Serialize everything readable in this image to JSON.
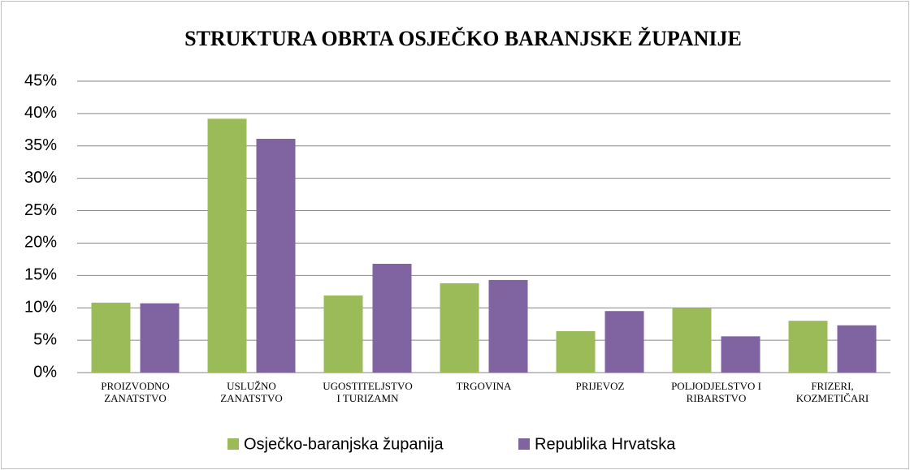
{
  "chart_data": {
    "type": "bar",
    "title": "STRUKTURA OBRTA OSJEČKO BARANJSKE ŽUPANIJE",
    "categories": [
      "PROIZVODNO\nZANATSTVO",
      "USLUŽNO\nZANATSTVO",
      "UGOSTITELJSTVO\nI TURIZAMN",
      "TRGOVINA",
      "PRIJEVOZ",
      "POLJODJELSTVO I\nRIBARSTVO",
      "FRIZERI,\nKOZMETIČARI"
    ],
    "series": [
      {
        "name": "Osječko-baranjska županija",
        "color": "#9bbb59",
        "values": [
          10.8,
          39.2,
          11.9,
          13.8,
          6.4,
          10.0,
          8.0
        ]
      },
      {
        "name": "Republika Hrvatska",
        "color": "#8064a2",
        "values": [
          10.7,
          36.1,
          16.8,
          14.3,
          9.5,
          5.6,
          7.3
        ]
      }
    ],
    "ylim": [
      0,
      45
    ],
    "yticks": [
      {
        "value": 0,
        "label": "0%"
      },
      {
        "value": 5,
        "label": "5%"
      },
      {
        "value": 10,
        "label": "10%"
      },
      {
        "value": 15,
        "label": "15%"
      },
      {
        "value": 20,
        "label": "20%"
      },
      {
        "value": 25,
        "label": "25%"
      },
      {
        "value": 30,
        "label": "30%"
      },
      {
        "value": 35,
        "label": "35%"
      },
      {
        "value": 40,
        "label": "40%"
      },
      {
        "value": 45,
        "label": "45%"
      }
    ],
    "grid": true,
    "legend": "bottom"
  }
}
